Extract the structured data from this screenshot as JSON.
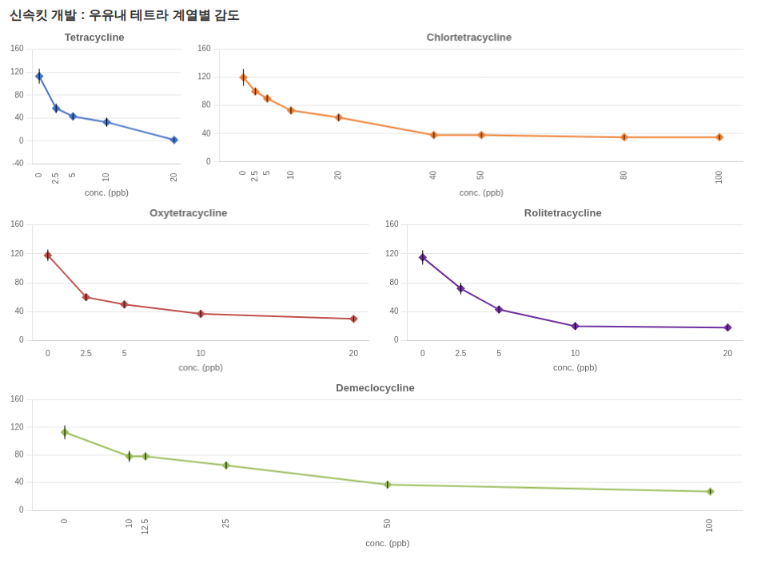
{
  "title": "신속킷 개발 : 우유내 테트라 계열별 감도",
  "chart_data": [
    {
      "type": "line",
      "title": "Tetracycline",
      "color": "#4472C4",
      "marker": "diamond",
      "line_style": "solid",
      "x": [
        0,
        2.5,
        5,
        10,
        20
      ],
      "values": [
        113,
        57,
        43,
        33,
        2
      ],
      "yerr": [
        13,
        8,
        5,
        8,
        3
      ],
      "xlabel": "conc. (ppb)",
      "xlim": [
        -1,
        21
      ],
      "xticks": [
        0,
        2.5,
        5,
        10,
        20
      ],
      "ylim": [
        -40,
        160
      ],
      "yticks": [
        -40,
        0,
        40,
        80,
        120,
        160
      ],
      "grid": true
    },
    {
      "type": "line",
      "title": "Chlortetracycline",
      "color": "#ED7D31",
      "marker": "diamond",
      "line_style": "solid",
      "x": [
        0,
        2.5,
        5,
        10,
        20,
        40,
        50,
        80,
        100
      ],
      "values": [
        120,
        100,
        90,
        73,
        63,
        38,
        38,
        35,
        35
      ],
      "yerr": [
        12,
        5,
        5,
        5,
        5,
        4,
        3,
        3,
        3
      ],
      "xlabel": "conc. (ppb)",
      "xlim": [
        -5,
        105
      ],
      "xticks": [
        0,
        2.5,
        5,
        10,
        20,
        40,
        50,
        80,
        100
      ],
      "ylim": [
        0,
        160
      ],
      "yticks": [
        0,
        40,
        80,
        120,
        160
      ],
      "grid": true
    },
    {
      "type": "line",
      "title": "Oxytetracycline",
      "color": "#C0504D",
      "marker": "diamond",
      "line_style": "solid",
      "x": [
        0,
        2.5,
        5,
        10,
        20
      ],
      "values": [
        118,
        60,
        50,
        37,
        30
      ],
      "yerr": [
        8,
        5,
        5,
        5,
        3
      ],
      "xlabel": "conc. (ppb)",
      "xlim": [
        -1,
        21
      ],
      "xticks": [
        0,
        2.5,
        5,
        10,
        20
      ],
      "ylim": [
        0,
        160
      ],
      "yticks": [
        0,
        40,
        80,
        120,
        160
      ],
      "grid": true
    },
    {
      "type": "line",
      "title": "Rolitetracycline",
      "color": "#7030A0",
      "marker": "diamond",
      "line_style": "solid",
      "x": [
        0,
        2.5,
        5,
        10,
        20
      ],
      "values": [
        115,
        72,
        43,
        20,
        18
      ],
      "yerr": [
        10,
        8,
        5,
        5,
        3
      ],
      "xlabel": "conc. (ppb)",
      "xlim": [
        -1,
        21
      ],
      "xticks": [
        0,
        2.5,
        5,
        10,
        20
      ],
      "ylim": [
        0,
        160
      ],
      "yticks": [
        0,
        40,
        80,
        120,
        160
      ],
      "grid": true
    },
    {
      "type": "line",
      "title": "Demeclocycline",
      "color": "#9BBB59",
      "marker": "diamond",
      "line_style": "solid",
      "x": [
        0,
        10,
        12.5,
        25,
        50,
        100
      ],
      "values": [
        113,
        78,
        78,
        65,
        37,
        27
      ],
      "yerr": [
        10,
        8,
        5,
        5,
        5,
        3
      ],
      "xlabel": "conc. (ppb)",
      "xlim": [
        -5,
        105
      ],
      "xticks": [
        0,
        10,
        12.5,
        25,
        50,
        100
      ],
      "ylim": [
        0,
        160
      ],
      "yticks": [
        0,
        40,
        80,
        120,
        160
      ],
      "grid": true
    }
  ]
}
